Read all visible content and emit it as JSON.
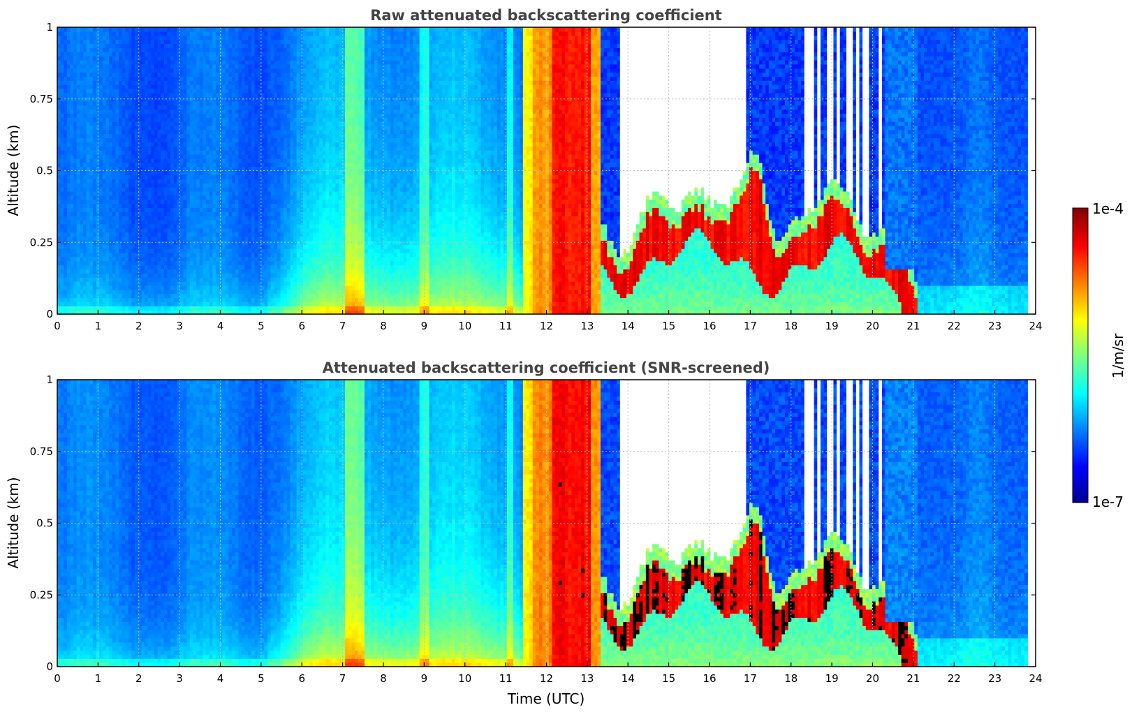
{
  "chart_data": [
    {
      "type": "heatmap",
      "title": "Raw attenuated backscattering coefficient",
      "xlabel": "",
      "ylabel": "Altitude (km)",
      "xlim": [
        0,
        24
      ],
      "ylim": [
        0,
        1
      ],
      "x_ticks": [
        "0",
        "1",
        "2",
        "3",
        "4",
        "5",
        "6",
        "7",
        "8",
        "9",
        "10",
        "11",
        "12",
        "13",
        "14",
        "15",
        "16",
        "17",
        "18",
        "19",
        "20",
        "21",
        "22",
        "23",
        "24"
      ],
      "y_ticks": [
        "0",
        "0.25",
        "0.5",
        "0.75",
        "1"
      ],
      "grid": true,
      "data_time_end_utc": 23.8,
      "screened": false
    },
    {
      "type": "heatmap",
      "title": "Attenuated backscattering coefficient (SNR-screened)",
      "xlabel": "Time (UTC)",
      "ylabel": "Altitude (km)",
      "xlim": [
        0,
        24
      ],
      "ylim": [
        0,
        1
      ],
      "x_ticks": [
        "0",
        "1",
        "2",
        "3",
        "4",
        "5",
        "6",
        "7",
        "8",
        "9",
        "10",
        "11",
        "12",
        "13",
        "14",
        "15",
        "16",
        "17",
        "18",
        "19",
        "20",
        "21",
        "22",
        "23",
        "24"
      ],
      "y_ticks": [
        "0",
        "0.25",
        "0.5",
        "0.75",
        "1"
      ],
      "grid": true,
      "data_time_end_utc": 23.8,
      "screened": true
    }
  ],
  "colorbar": {
    "label": "1/m/sr",
    "max_label": "1e-4",
    "min_label": "1e-7",
    "scale": "log",
    "colormap": "jet",
    "range": [
      1e-07,
      0.0001
    ]
  },
  "colors": {
    "title": "#444444",
    "grid": "#bfbfbf",
    "clear_sky": "#ffffff",
    "screened_saturation": "#000000"
  }
}
